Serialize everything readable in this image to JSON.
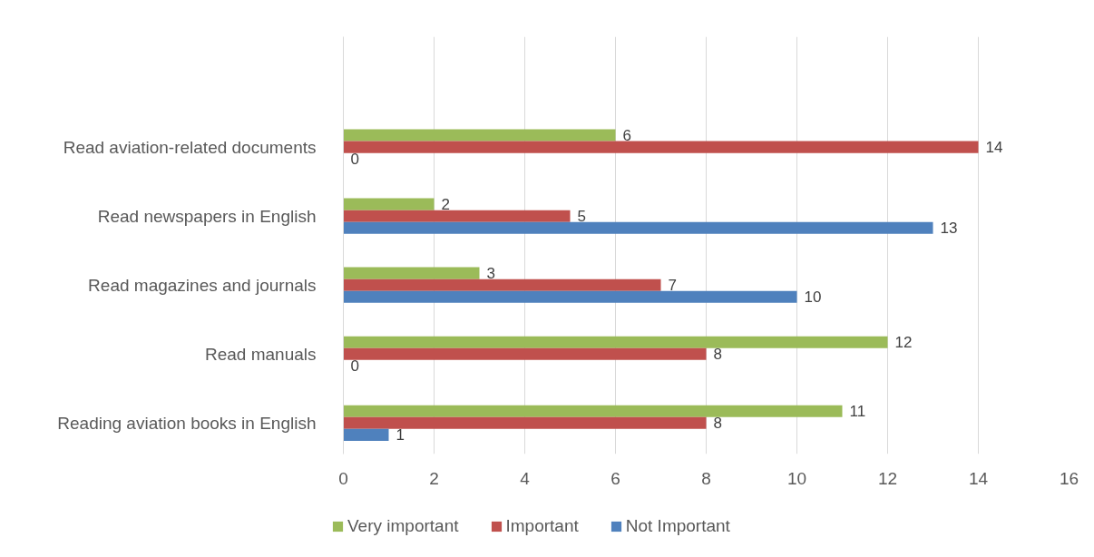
{
  "chart_data": {
    "type": "bar",
    "orientation": "horizontal",
    "categories": [
      "Read aviation-related documents",
      "Read newspapers in English",
      "Read magazines and journals",
      "Read manuals",
      "Reading aviation books in English"
    ],
    "series": [
      {
        "name": "Very important",
        "color": "#9bbb59",
        "values": [
          6,
          2,
          3,
          12,
          11
        ]
      },
      {
        "name": "Important",
        "color": "#c0504d",
        "values": [
          14,
          5,
          7,
          8,
          8
        ]
      },
      {
        "name": "Not Important",
        "color": "#4f81bd",
        "values": [
          0,
          13,
          10,
          0,
          1
        ]
      }
    ],
    "xlim": [
      0,
      16
    ],
    "xticks": [
      0,
      2,
      4,
      6,
      8,
      10,
      12,
      14,
      16
    ],
    "grid": "x",
    "legend": "bottom",
    "data_labels": true
  }
}
